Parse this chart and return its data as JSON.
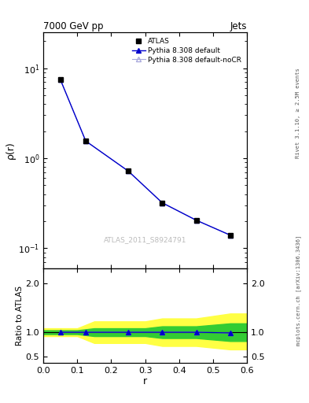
{
  "title_left": "7000 GeV pp",
  "title_right": "Jets",
  "ylabel_main": "ρ(r)",
  "ylabel_ratio": "Ratio to ATLAS",
  "xlabel": "r",
  "watermark": "ATLAS_2011_S8924791",
  "rivet_label": "Rivet 3.1.10, ≥ 2.5M events",
  "mcplots_label": "mcplots.cern.ch [arXiv:1306.3436]",
  "x_main": [
    0.05,
    0.125,
    0.25,
    0.35,
    0.45,
    0.55
  ],
  "y_atlas": [
    7.5,
    1.55,
    0.72,
    0.32,
    0.205,
    0.14
  ],
  "y_pythia_default": [
    7.5,
    1.55,
    0.72,
    0.32,
    0.205,
    0.14
  ],
  "y_pythia_nocr": [
    7.5,
    1.55,
    0.72,
    0.32,
    0.205,
    0.14
  ],
  "ratio_default": [
    1.0,
    1.0,
    1.0,
    1.0,
    1.0,
    0.985
  ],
  "ratio_nocr": [
    1.0,
    1.0,
    1.0,
    1.0,
    1.0,
    0.985
  ],
  "band_edges": [
    0.0,
    0.1,
    0.15,
    0.3,
    0.35,
    0.45,
    0.55,
    0.6
  ],
  "green_upper": [
    1.04,
    1.04,
    1.08,
    1.08,
    1.12,
    1.12,
    1.18,
    1.18
  ],
  "green_lower": [
    0.96,
    0.96,
    0.92,
    0.92,
    0.88,
    0.88,
    0.82,
    0.82
  ],
  "yellow_upper": [
    1.08,
    1.08,
    1.22,
    1.22,
    1.28,
    1.28,
    1.38,
    1.38
  ],
  "yellow_lower": [
    0.92,
    0.92,
    0.78,
    0.78,
    0.72,
    0.72,
    0.65,
    0.65
  ],
  "color_atlas": "#000000",
  "color_pythia_default": "#0000cc",
  "color_pythia_nocr": "#aaaadd",
  "color_green": "#33cc33",
  "color_yellow": "#ffff44",
  "ylim_main": [
    0.06,
    25
  ],
  "ylim_ratio": [
    0.38,
    2.3
  ],
  "xlim": [
    0.0,
    0.6
  ]
}
